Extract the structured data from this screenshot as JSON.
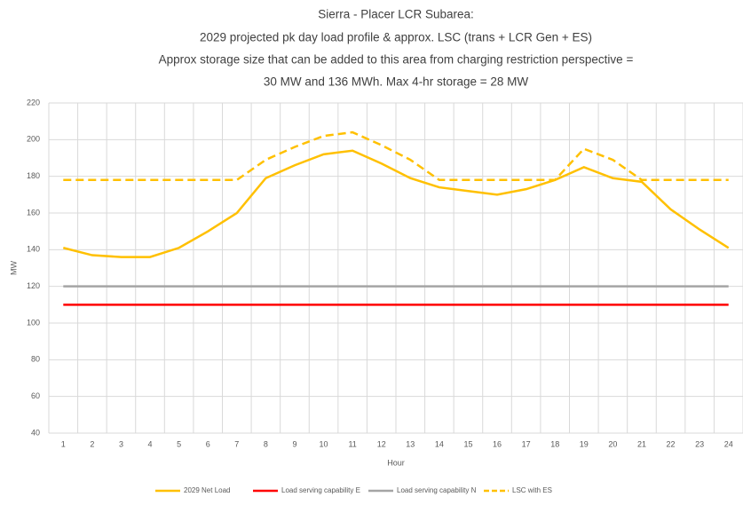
{
  "chart_data": {
    "type": "line",
    "title": [
      "Sierra - Placer LCR Subarea:",
      "2029 projected pk day load profile & approx. LSC (trans + LCR Gen + ES)",
      "Approx storage size that can be added to this area from charging restriction perspective =",
      "30 MW and 136 MWh. Max 4-hr storage = 28 MW"
    ],
    "x_label": "Hour",
    "y_label": "MW",
    "categories": [
      "1",
      "2",
      "3",
      "4",
      "5",
      "6",
      "7",
      "8",
      "9",
      "10",
      "11",
      "12",
      "13",
      "14",
      "15",
      "16",
      "17",
      "18",
      "19",
      "20",
      "21",
      "22",
      "23",
      "24"
    ],
    "series": [
      {
        "name": "2029 Net Load",
        "color": "#ffc000",
        "dash": false,
        "values": [
          141,
          137,
          136,
          136,
          141,
          150,
          160,
          179,
          186,
          192,
          194,
          187,
          179,
          174,
          172,
          170,
          173,
          178,
          185,
          179,
          177,
          162,
          151,
          141
        ]
      },
      {
        "name": "Load serving capability E",
        "color": "#ff0000",
        "dash": false,
        "values": [
          110,
          110,
          110,
          110,
          110,
          110,
          110,
          110,
          110,
          110,
          110,
          110,
          110,
          110,
          110,
          110,
          110,
          110,
          110,
          110,
          110,
          110,
          110,
          110
        ]
      },
      {
        "name": "Load serving capability N",
        "color": "#a5a5a5",
        "dash": false,
        "values": [
          120,
          120,
          120,
          120,
          120,
          120,
          120,
          120,
          120,
          120,
          120,
          120,
          120,
          120,
          120,
          120,
          120,
          120,
          120,
          120,
          120,
          120,
          120,
          120
        ]
      },
      {
        "name": "LSC with ES",
        "color": "#ffc000",
        "dash": true,
        "values": [
          178,
          178,
          178,
          178,
          178,
          178,
          178,
          189,
          196,
          202,
          204,
          197,
          189,
          178,
          178,
          178,
          178,
          178,
          195,
          189,
          178,
          178,
          178,
          178
        ]
      }
    ],
    "ylim": [
      40,
      220
    ],
    "yticks": [
      40,
      60,
      80,
      100,
      120,
      140,
      160,
      180,
      200,
      220
    ],
    "grid": true
  }
}
